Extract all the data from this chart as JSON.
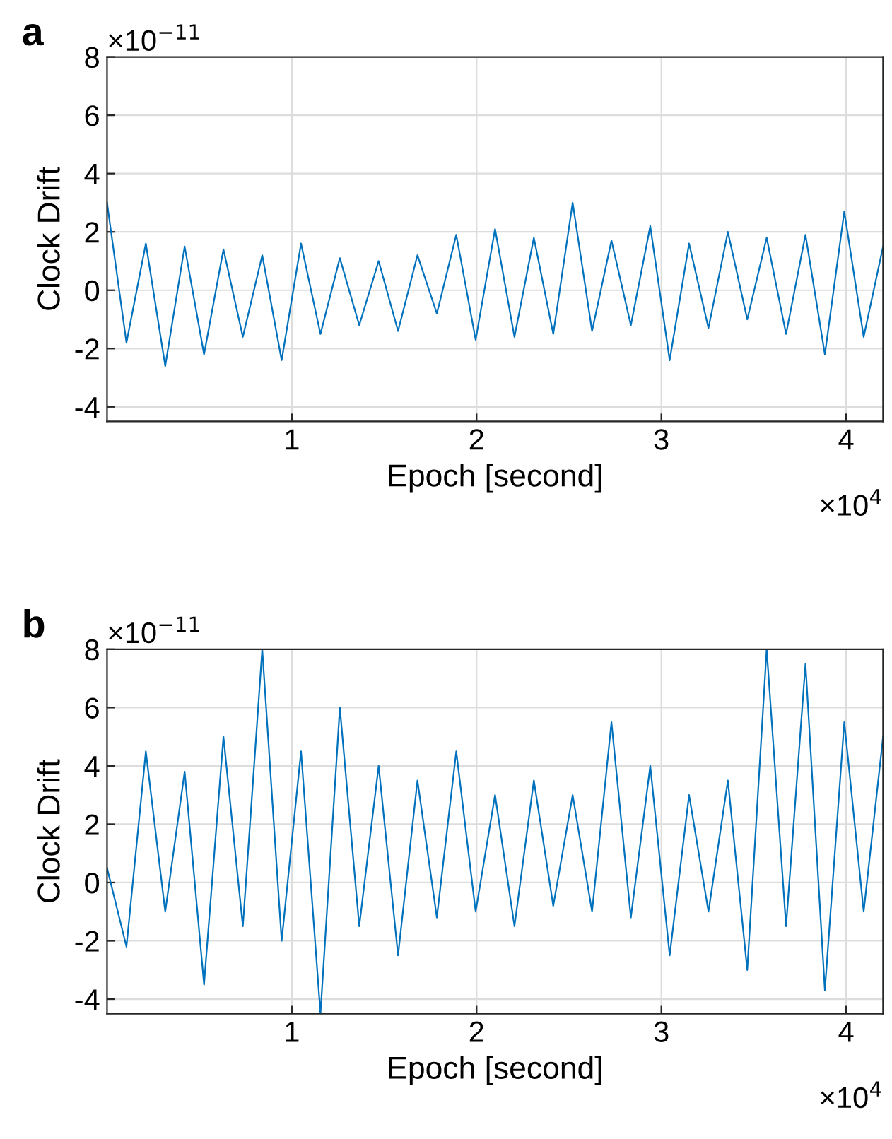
{
  "chart_data": [
    {
      "type": "line",
      "title": "a",
      "xlabel": "Epoch [second]",
      "ylabel": "Clock Drift",
      "annotations": [
        "×10$^{−11}$",
        "×10$^{4}$"
      ],
      "series": [
        {
          "color": "#0072bd",
          "x": [
            0,
            0.105,
            0.21,
            0.315,
            0.42,
            0.525,
            0.63,
            0.735,
            0.84,
            0.945,
            1.05,
            1.155,
            1.26,
            1.365,
            1.47,
            1.575,
            1.68,
            1.785,
            1.89,
            1.995,
            2.1,
            2.205,
            2.31,
            2.415,
            2.52,
            2.625,
            2.73,
            2.835,
            2.94,
            3.045,
            3.15,
            3.255,
            3.36,
            3.465,
            3.57,
            3.675,
            3.78,
            3.885,
            3.99,
            4.095,
            4.2
          ],
          "values": [
            3.0,
            -1.8,
            1.6,
            -2.6,
            1.5,
            -2.2,
            1.4,
            -1.6,
            1.2,
            -2.4,
            1.6,
            -1.5,
            1.1,
            -1.2,
            1.0,
            -1.4,
            1.2,
            -0.8,
            1.9,
            -1.7,
            2.1,
            -1.6,
            1.8,
            -1.5,
            3.0,
            -1.4,
            1.7,
            -1.2,
            2.2,
            -2.4,
            1.6,
            -1.3,
            2.0,
            -1.0,
            1.8,
            -1.5,
            1.9,
            -2.2,
            2.7,
            -1.6,
            1.5
          ]
        }
      ],
      "xlim": [
        0,
        4.2
      ],
      "xticks": [
        1,
        2,
        3,
        4
      ],
      "ylim": [
        -4.5,
        8
      ],
      "yticks": [
        -4,
        -2,
        0,
        2,
        4,
        6,
        8
      ],
      "grid": true,
      "line_style": "solid"
    },
    {
      "type": "line",
      "title": "b",
      "xlabel": "Epoch [second]",
      "ylabel": "Clock Drift",
      "annotations": [
        "×10$^{−11}$",
        "×10$^{4}$"
      ],
      "series": [
        {
          "color": "#0072bd",
          "x": [
            0,
            0.105,
            0.21,
            0.315,
            0.42,
            0.525,
            0.63,
            0.735,
            0.84,
            0.945,
            1.05,
            1.155,
            1.26,
            1.365,
            1.47,
            1.575,
            1.68,
            1.785,
            1.89,
            1.995,
            2.1,
            2.205,
            2.31,
            2.415,
            2.52,
            2.625,
            2.73,
            2.835,
            2.94,
            3.045,
            3.15,
            3.255,
            3.36,
            3.465,
            3.57,
            3.675,
            3.78,
            3.885,
            3.99,
            4.095,
            4.2
          ],
          "values": [
            0.5,
            -2.2,
            4.5,
            -1.0,
            3.8,
            -3.5,
            5.0,
            -1.5,
            8.0,
            -2.0,
            4.5,
            -4.5,
            6.0,
            -1.5,
            4.0,
            -2.5,
            3.5,
            -1.2,
            4.5,
            -1.0,
            3.0,
            -1.5,
            3.5,
            -0.8,
            3.0,
            -1.0,
            5.5,
            -1.2,
            4.0,
            -2.5,
            3.0,
            -1.0,
            3.5,
            -3.0,
            8.0,
            -1.5,
            7.5,
            -3.7,
            5.5,
            -1.0,
            5.0
          ]
        }
      ],
      "xlim": [
        0,
        4.2
      ],
      "xticks": [
        1,
        2,
        3,
        4
      ],
      "ylim": [
        -4.5,
        8
      ],
      "yticks": [
        -4,
        -2,
        0,
        2,
        4,
        6,
        8
      ],
      "grid": true,
      "line_style": "solid"
    }
  ]
}
